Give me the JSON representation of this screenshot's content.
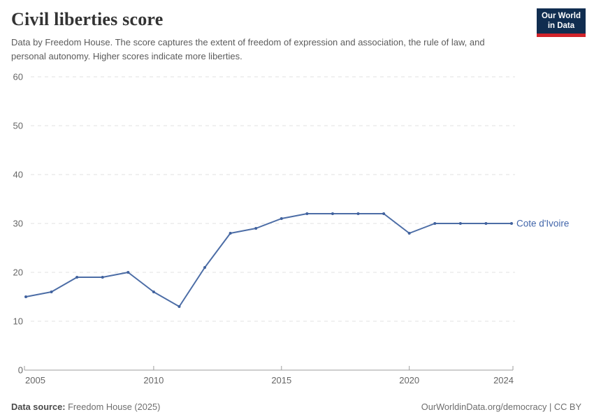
{
  "header": {
    "title": "Civil liberties score",
    "subtitle": "Data by Freedom House. The score captures the extent of freedom of expression and association, the rule of law, and personal autonomy. Higher scores indicate more liberties.",
    "logo_line1": "Our World",
    "logo_line2": "in Data"
  },
  "chart_data": {
    "type": "line",
    "title": "Civil liberties score",
    "x": [
      2005,
      2006,
      2007,
      2008,
      2009,
      2010,
      2011,
      2012,
      2013,
      2014,
      2015,
      2016,
      2017,
      2018,
      2019,
      2020,
      2021,
      2022,
      2023,
      2024
    ],
    "series": [
      {
        "name": "Cote d'Ivoire",
        "values": [
          15,
          16,
          19,
          19,
          20,
          16,
          13,
          21,
          28,
          29,
          31,
          32,
          32,
          32,
          32,
          28,
          30,
          30,
          30,
          30
        ]
      }
    ],
    "xlabel": "",
    "ylabel": "",
    "ylim": [
      0,
      60
    ],
    "yticks": [
      0,
      10,
      20,
      30,
      40,
      50,
      60
    ],
    "xticks": [
      2005,
      2010,
      2015,
      2020,
      2024
    ],
    "grid": "dashed horizontal",
    "legend_position": "end-of-line label",
    "colors": {
      "line": "#4c6da6",
      "marker": "#41629e",
      "entity_label": "#4266aa",
      "grid": "#e0e0e0",
      "axis": "#9e9e9e",
      "tick_text": "#666666"
    }
  },
  "footer": {
    "source_label": "Data source:",
    "source_value": "Freedom House (2025)",
    "attribution": "OurWorldinData.org/democracy | CC BY"
  }
}
